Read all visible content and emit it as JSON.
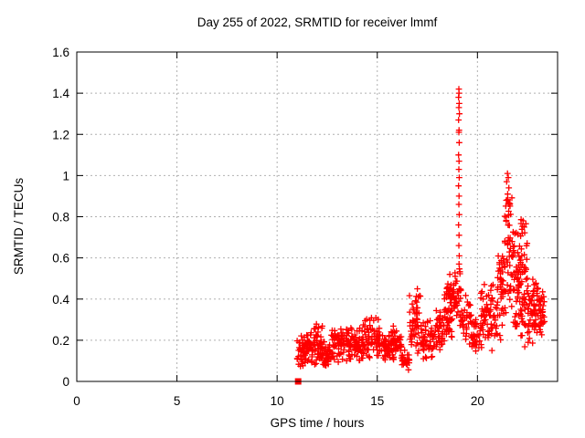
{
  "window": {
    "background": "#ffffff",
    "description": "gnuplot scatter figure, no window chrome, no legend"
  },
  "chart_data": {
    "type": "scatter",
    "title": "Day 255 of 2022, SRMTID for receiver lmmf",
    "xlabel": "GPS time / hours",
    "ylabel": "SRMTID / TECUs",
    "xlim": [
      0,
      24
    ],
    "ylim": [
      0,
      1.6
    ],
    "xticks": {
      "values": [
        0,
        5,
        10,
        15,
        20
      ],
      "labels": [
        "0",
        "5",
        "10",
        "15",
        "20"
      ]
    },
    "yticks": {
      "values": [
        0,
        0.2,
        0.4,
        0.6,
        0.8,
        1.0,
        1.2,
        1.4,
        1.6
      ],
      "labels": [
        "0",
        "0.2",
        "0.4",
        "0.6",
        "0.8",
        "1",
        "1.2",
        "1.4",
        "1.6"
      ]
    },
    "grid": true,
    "grid_style": "dotted",
    "legend_position": "none",
    "marker": "plus",
    "marker_color": "#ff0000",
    "grid_color": "#b0b0b0",
    "border_color": "#000000",
    "background": "#ffffff",
    "data_extent_hours": [
      11.0,
      23.35
    ],
    "square_marker_point": [
      11.05,
      0.0
    ],
    "peak_points": [
      [
        19.07,
        1.42
      ],
      [
        19.08,
        1.4
      ],
      [
        19.06,
        1.38
      ],
      [
        19.09,
        1.35
      ],
      [
        19.07,
        1.33
      ],
      [
        19.1,
        1.3
      ],
      [
        19.06,
        1.27
      ],
      [
        19.08,
        1.22
      ],
      [
        19.07,
        1.21
      ],
      [
        19.09,
        1.16
      ],
      [
        19.06,
        1.1
      ],
      [
        19.08,
        1.07
      ],
      [
        19.07,
        1.03
      ],
      [
        19.09,
        0.99
      ],
      [
        19.06,
        0.95
      ],
      [
        19.08,
        0.9
      ],
      [
        19.07,
        0.86
      ],
      [
        19.09,
        0.81
      ],
      [
        19.06,
        0.76
      ],
      [
        19.08,
        0.71
      ],
      [
        19.07,
        0.66
      ],
      [
        19.09,
        0.61
      ],
      [
        19.08,
        0.57
      ],
      [
        21.5,
        1.01
      ],
      [
        21.54,
        0.99
      ],
      [
        21.46,
        0.97
      ],
      [
        21.57,
        0.94
      ],
      [
        21.51,
        0.91
      ],
      [
        21.44,
        0.88
      ],
      [
        21.6,
        0.86
      ],
      [
        22.28,
        0.78
      ],
      [
        22.33,
        0.75
      ],
      [
        22.24,
        0.72
      ],
      [
        17.0,
        0.45
      ],
      [
        18.62,
        0.52
      ]
    ],
    "clusters": [
      {
        "h0": 11.0,
        "h1": 11.6,
        "vmin": 0.07,
        "vmax": 0.23,
        "n": 55
      },
      {
        "h0": 11.6,
        "h1": 12.3,
        "vmin": 0.08,
        "vmax": 0.28,
        "n": 62
      },
      {
        "h0": 12.3,
        "h1": 12.7,
        "vmin": 0.07,
        "vmax": 0.2,
        "n": 34
      },
      {
        "h0": 12.7,
        "h1": 13.5,
        "vmin": 0.09,
        "vmax": 0.27,
        "n": 64
      },
      {
        "h0": 13.5,
        "h1": 14.2,
        "vmin": 0.09,
        "vmax": 0.26,
        "n": 55
      },
      {
        "h0": 14.2,
        "h1": 15.1,
        "vmin": 0.11,
        "vmax": 0.31,
        "n": 70
      },
      {
        "h0": 15.1,
        "h1": 15.7,
        "vmin": 0.09,
        "vmax": 0.25,
        "n": 45
      },
      {
        "h0": 15.7,
        "h1": 16.2,
        "vmin": 0.1,
        "vmax": 0.28,
        "n": 44
      },
      {
        "h0": 16.2,
        "h1": 16.6,
        "vmin": 0.05,
        "vmax": 0.16,
        "n": 28
      },
      {
        "h0": 16.6,
        "h1": 17.15,
        "vmin": 0.1,
        "vmax": 0.45,
        "n": 48
      },
      {
        "h0": 17.15,
        "h1": 17.9,
        "vmin": 0.1,
        "vmax": 0.33,
        "n": 50
      },
      {
        "h0": 17.9,
        "h1": 18.35,
        "vmin": 0.14,
        "vmax": 0.36,
        "n": 42
      },
      {
        "h0": 18.35,
        "h1": 18.85,
        "vmin": 0.2,
        "vmax": 0.52,
        "n": 62
      },
      {
        "h0": 18.85,
        "h1": 19.2,
        "vmin": 0.26,
        "vmax": 0.55,
        "n": 30
      },
      {
        "h0": 19.2,
        "h1": 19.7,
        "vmin": 0.18,
        "vmax": 0.42,
        "n": 34
      },
      {
        "h0": 19.7,
        "h1": 20.15,
        "vmin": 0.13,
        "vmax": 0.3,
        "n": 30
      },
      {
        "h0": 20.15,
        "h1": 21.0,
        "vmin": 0.15,
        "vmax": 0.5,
        "n": 75
      },
      {
        "h0": 21.0,
        "h1": 21.35,
        "vmin": 0.2,
        "vmax": 0.65,
        "n": 40
      },
      {
        "h0": 21.35,
        "h1": 21.8,
        "vmin": 0.3,
        "vmax": 1.0,
        "n": 58
      },
      {
        "h0": 21.8,
        "h1": 22.15,
        "vmin": 0.22,
        "vmax": 0.75,
        "n": 46
      },
      {
        "h0": 22.15,
        "h1": 22.5,
        "vmin": 0.12,
        "vmax": 0.8,
        "n": 50
      },
      {
        "h0": 22.5,
        "h1": 23.0,
        "vmin": 0.18,
        "vmax": 0.5,
        "n": 56
      },
      {
        "h0": 23.0,
        "h1": 23.35,
        "vmin": 0.22,
        "vmax": 0.46,
        "n": 34
      }
    ],
    "seed": 255
  }
}
